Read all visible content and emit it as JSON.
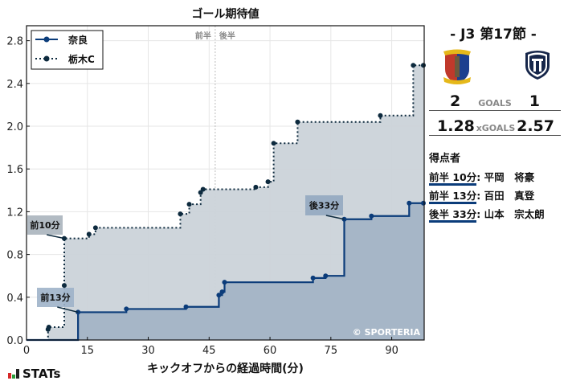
{
  "chart_data": {
    "type": "line",
    "subtype": "step",
    "title": "ゴール期待値",
    "xlabel": "キックオフからの経過時間(分)",
    "ylabel": "",
    "xlim": [
      0,
      98
    ],
    "ylim": [
      0,
      2.94
    ],
    "xticks": [
      0,
      15,
      30,
      45,
      60,
      75,
      90
    ],
    "yticks": [
      0.0,
      0.4,
      0.8,
      1.2,
      1.6,
      2.0,
      2.4,
      2.8
    ],
    "grid": true,
    "legend_position": "upper left",
    "halftime_marker": {
      "x": 46.5,
      "labels": [
        "前半",
        "後半"
      ]
    },
    "series": [
      {
        "name": "奈良",
        "line_style": "solid",
        "color": "#0b3c7a",
        "fill": "#a3b4c6",
        "x": [
          0,
          12.7,
          24.6,
          39.3,
          47.4,
          48.2,
          48.8,
          70.6,
          73.7,
          78.3,
          85.0,
          94.3,
          98
        ],
        "y": [
          0.0,
          0.26,
          0.29,
          0.31,
          0.42,
          0.45,
          0.54,
          0.58,
          0.6,
          1.13,
          1.16,
          1.28,
          1.28
        ]
      },
      {
        "name": "栃木C",
        "line_style": "dotted",
        "color": "#0d2a3e",
        "fill": "#cbd3d9",
        "x": [
          0,
          5.3,
          5.5,
          9.3,
          9.3,
          15.4,
          17.0,
          37.9,
          40.1,
          42.9,
          43.5,
          56.5,
          59.5,
          60.9,
          66.8,
          87.2,
          95.3,
          98
        ],
        "y": [
          0.0,
          0.1,
          0.12,
          0.51,
          0.95,
          0.99,
          1.05,
          1.18,
          1.27,
          1.38,
          1.41,
          1.43,
          1.48,
          1.84,
          2.04,
          2.1,
          2.57,
          2.57
        ]
      }
    ],
    "annotations": [
      {
        "text": "前10分",
        "x": 9.3,
        "y": 0.95,
        "team": "栃木C"
      },
      {
        "text": "前13分",
        "x": 12.7,
        "y": 0.26,
        "team": "奈良"
      },
      {
        "text": "後33分",
        "x": 78.3,
        "y": 1.13,
        "team": "奈良"
      }
    ],
    "watermark": "© SPORTERIA"
  },
  "match": {
    "round": "- J3 第17節 -",
    "home": {
      "name": "奈良",
      "goals": "2",
      "xgoals": "1.28"
    },
    "away": {
      "name": "栃木C",
      "goals": "1",
      "xgoals": "2.57"
    },
    "goals_label": "GOALS",
    "xgoals_label": "xGOALS"
  },
  "scorers": {
    "title": "得点者",
    "items": [
      {
        "time": "前半 10分",
        "name": "平岡　将豪",
        "team": "away"
      },
      {
        "time": "前半 13分",
        "name": "百田　真登",
        "team": "home"
      },
      {
        "time": "後半 33分",
        "name": "山本　宗太朗",
        "team": "home"
      }
    ]
  },
  "brand": {
    "label": "STATs"
  },
  "colors": {
    "home": "#0b3c7a",
    "away": "#0d2a3e",
    "home_fill": "#a3b4c6",
    "away_fill": "#cbd3d9"
  }
}
